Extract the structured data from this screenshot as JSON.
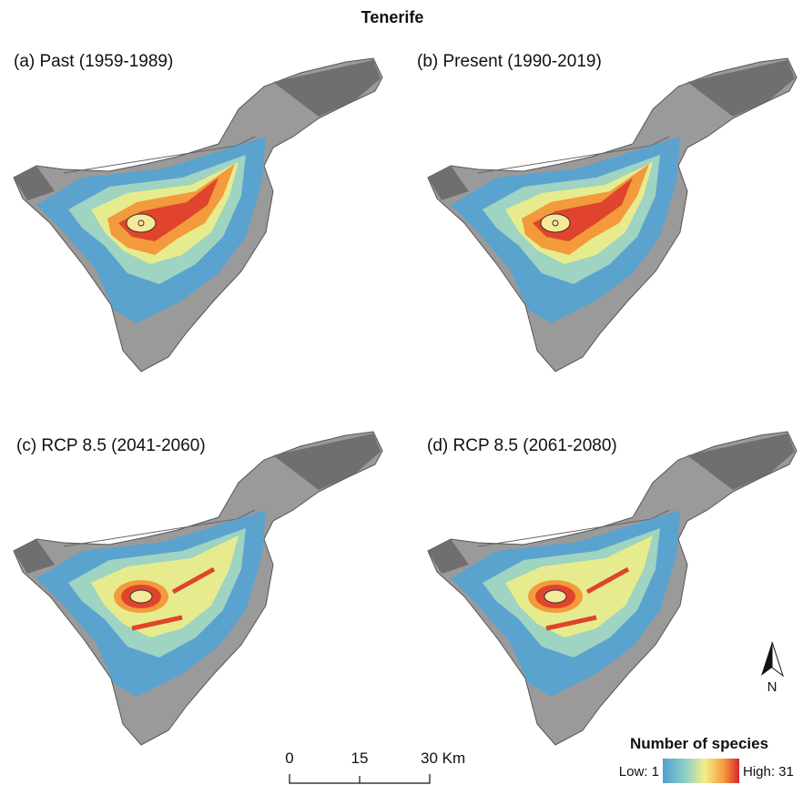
{
  "title": "Tenerife",
  "panels": [
    {
      "label": "(a) Past (1959-1989)"
    },
    {
      "label": "(b) Present (1990-2019)"
    },
    {
      "label": "(c) RCP 8.5 (2041-2060)"
    },
    {
      "label": "(d) RCP 8.5 (2061-2080)"
    }
  ],
  "legend": {
    "title": "Number of species",
    "low": "Low: 1",
    "high": "High: 31"
  },
  "scale_bar": {
    "labels": [
      "0",
      "15",
      "30 Km"
    ]
  },
  "north_arrow": {
    "label": "N"
  }
}
